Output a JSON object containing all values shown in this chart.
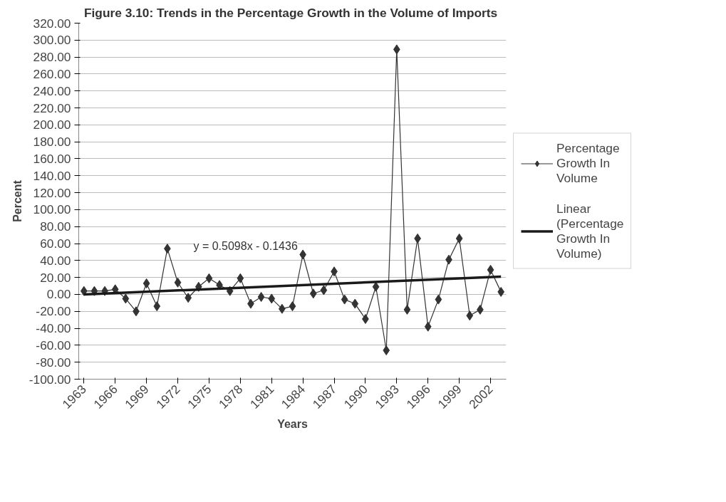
{
  "chart_data": {
    "type": "line",
    "title": "Figure 3.10: Trends in the Percentage Growth in the  Volume of Imports",
    "xlabel": "Years",
    "ylabel": "Percent",
    "x": [
      1963,
      1964,
      1965,
      1966,
      1967,
      1968,
      1969,
      1970,
      1971,
      1972,
      1973,
      1974,
      1975,
      1976,
      1977,
      1978,
      1979,
      1980,
      1981,
      1982,
      1983,
      1984,
      1985,
      1986,
      1987,
      1988,
      1989,
      1990,
      1991,
      1992,
      1993,
      1994,
      1995,
      1996,
      1997,
      1998,
      1999,
      2000,
      2001,
      2002,
      2003
    ],
    "series": [
      {
        "name": "Percentage Growth In Volume",
        "color": "#333333",
        "marker": "diamond",
        "values": [
          4,
          4,
          4,
          6,
          -5,
          -20,
          13,
          -14,
          54,
          14,
          -4,
          9,
          19,
          11,
          4,
          19,
          -11,
          -3,
          -5,
          -17,
          -14,
          47,
          1,
          5,
          27,
          -6,
          -11,
          -29,
          9,
          -66,
          289,
          -18,
          66,
          -38,
          -6,
          41,
          66,
          -25,
          -18,
          29,
          3
        ]
      },
      {
        "name": "Linear (Percentage Growth In Volume)",
        "type": "line",
        "color": "#1a1a1a",
        "marker": "none",
        "x": [
          1963,
          2003
        ],
        "values": [
          0,
          21
        ]
      }
    ],
    "xlim": [
      1962.5,
      2003.5
    ],
    "xticks": [
      1963,
      1966,
      1969,
      1972,
      1975,
      1978,
      1981,
      1984,
      1987,
      1990,
      1993,
      1996,
      1999,
      2002
    ],
    "ylim": [
      -100,
      320
    ],
    "yticks": [
      {
        "value": -100,
        "label": "-100.00"
      },
      {
        "value": -80,
        "label": "-80.00"
      },
      {
        "value": -60,
        "label": "-60.00"
      },
      {
        "value": -40,
        "label": "-40.00"
      },
      {
        "value": -20,
        "label": "-20.00"
      },
      {
        "value": 0,
        "label": "0.00"
      },
      {
        "value": 20,
        "label": "20.00"
      },
      {
        "value": 40,
        "label": "40.00"
      },
      {
        "value": 60,
        "label": "60.00"
      },
      {
        "value": 80,
        "label": "80.00"
      },
      {
        "value": 100,
        "label": "100.00"
      },
      {
        "value": 120,
        "label": "120.00"
      },
      {
        "value": 140,
        "label": "140.00"
      },
      {
        "value": 160,
        "label": "160.00"
      },
      {
        "value": 180,
        "label": "180.00"
      },
      {
        "value": 200,
        "label": "200.00"
      },
      {
        "value": 220,
        "label": "220.00"
      },
      {
        "value": 240,
        "label": "240.00"
      },
      {
        "value": 260,
        "label": "260.00"
      },
      {
        "value": 280,
        "label": "280.00"
      },
      {
        "value": 300,
        "label": "300.00"
      },
      {
        "value": 320,
        "label": "320.00"
      }
    ],
    "grid": "y",
    "legend": "right",
    "annotations": [
      "y = 0.5098x - 0.1436"
    ]
  }
}
